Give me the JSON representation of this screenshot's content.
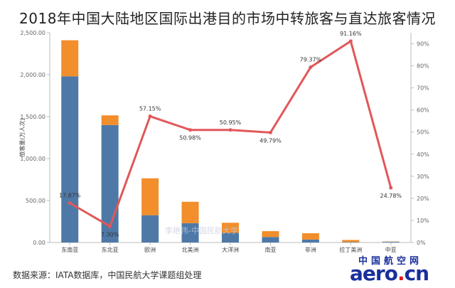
{
  "chart_data": {
    "type": "bar",
    "title": "2018年中国大陆地区国际出港目的市场中转旅客与直达旅客情况",
    "ylabel": "旅客量(万人次)",
    "categories": [
      "东南亚",
      "东北亚",
      "欧洲",
      "北美洲",
      "大洋洲",
      "南亚",
      "非洲",
      "拉丁美洲",
      "中亚"
    ],
    "ylim": [
      0,
      2500
    ],
    "yticks": [
      "0.00",
      "500.00",
      "1,000.00",
      "1,500.00",
      "2,000.00",
      "2,500.00"
    ],
    "y2lim": [
      0,
      95
    ],
    "y2ticks": [
      "0%",
      "10%",
      "20%",
      "30%",
      "40%",
      "50%",
      "60%",
      "70%",
      "80%",
      "90%"
    ],
    "series": [
      {
        "role": "direct",
        "color": "#4e79a7",
        "values": [
          1980,
          1400,
          325,
          230,
          115,
          65,
          35,
          5,
          8
        ]
      },
      {
        "role": "transfer",
        "color": "#f28e2b",
        "values": [
          430,
          115,
          440,
          255,
          120,
          70,
          75,
          25,
          3
        ]
      }
    ],
    "line": {
      "color": "#e15759",
      "values": [
        17.87,
        7.3,
        57.15,
        50.98,
        50.95,
        49.79,
        79.37,
        91.16,
        24.78
      ],
      "labels": [
        "17.87%",
        "7.30%",
        "57.15%",
        "50.98%",
        "50.95%",
        "49.79%",
        "79.37%",
        "91.16%",
        "24.78%"
      ],
      "label_pos": [
        "above",
        "below",
        "above",
        "below",
        "above",
        "below",
        "above",
        "above",
        "below"
      ]
    },
    "grid": false
  },
  "source": "数据来源：IATA数据库，中国民航大学课题组处理",
  "watermark": "李艳伟-中国民航大学",
  "logo": {
    "cn": "中国航空网",
    "en_main": "aero",
    "en_dot": ".",
    "en_tail": "cn"
  }
}
